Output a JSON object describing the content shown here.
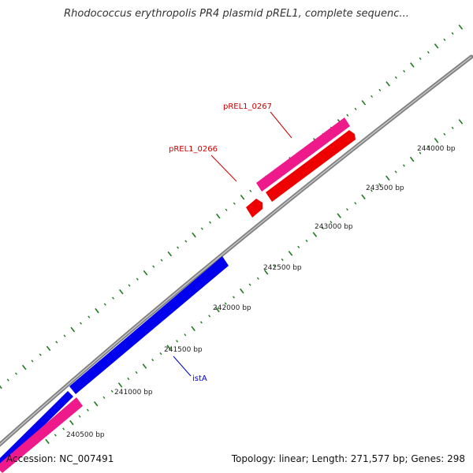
{
  "title": "Rhodococcus erythropolis PR4 plasmid pREL1, complete sequenc...",
  "footer": {
    "accession": "Accession: NC_007491",
    "topology": "Topology: linear; Length: 271,577 bp; Genes: 298"
  },
  "tick_labels": [
    "240500 bp",
    "241000 bp",
    "241500 bp",
    "242000 bp",
    "242500 bp",
    "243000 bp",
    "243500 bp",
    "244000 bp"
  ],
  "feature_labels": {
    "istA": "istA",
    "pREL1_0266": "pREL1_0266",
    "pREL1_0267": "pREL1_0267"
  },
  "colors": {
    "backbone": "#808080",
    "tick": "#1f7a1f",
    "blue_gene": "#0000ee",
    "red_gene": "#ee0000",
    "pink_gene": "#ee1a8c",
    "label_red": "#cc0000",
    "label_blue": "#0000cc"
  }
}
